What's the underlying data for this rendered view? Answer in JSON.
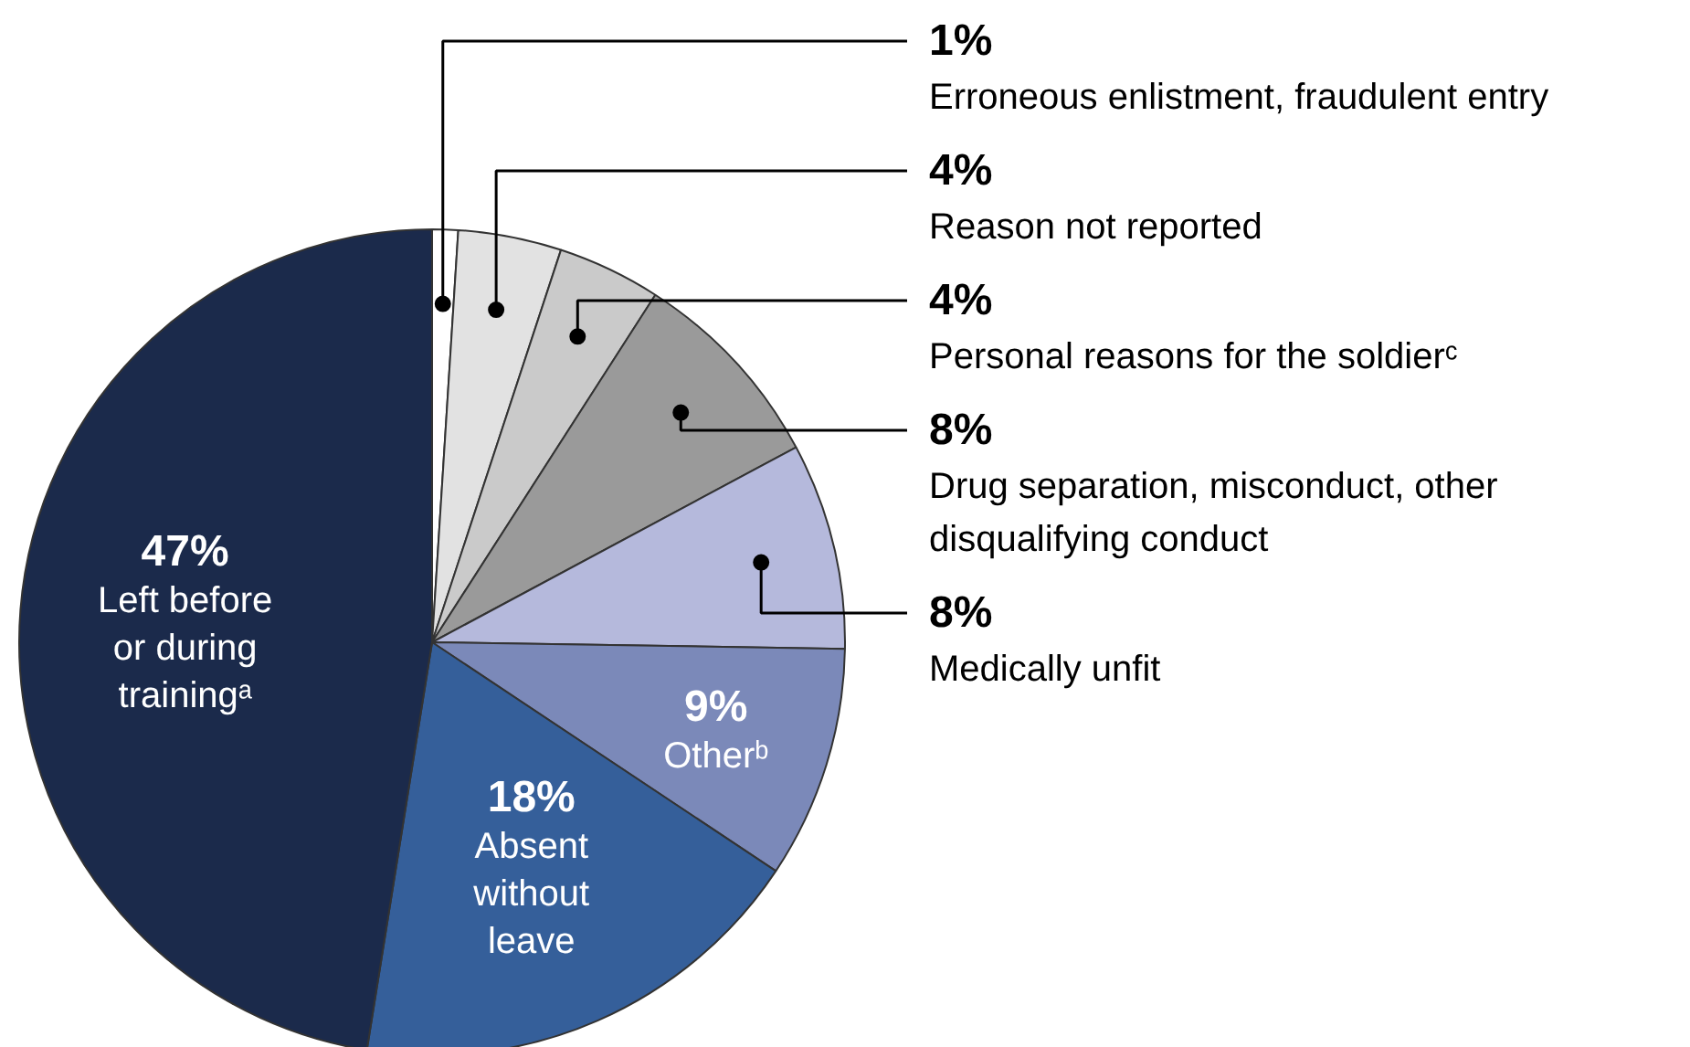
{
  "chart_data": {
    "type": "pie",
    "categories": [
      "Erroneous enlistment, fraudulent entry",
      "Reason not reported",
      "Personal reasons for the soldierᶜ",
      "Drug separation, misconduct, other disqualifying conduct",
      "Medically unfit",
      "Otherᵇ",
      "Absent without leave",
      "Left before or during trainingᵃ"
    ],
    "values": [
      1,
      4,
      4,
      8,
      8,
      9,
      18,
      47
    ],
    "value_labels": [
      "1%",
      "4%",
      "4%",
      "8%",
      "8%",
      "9%",
      "18%",
      "47%"
    ],
    "colors": [
      "#ffffff",
      "#e2e2e2",
      "#cacaca",
      "#9a9a9a",
      "#b5b9dc",
      "#7b89b9",
      "#355f9a",
      "#1b2a4b"
    ]
  }
}
